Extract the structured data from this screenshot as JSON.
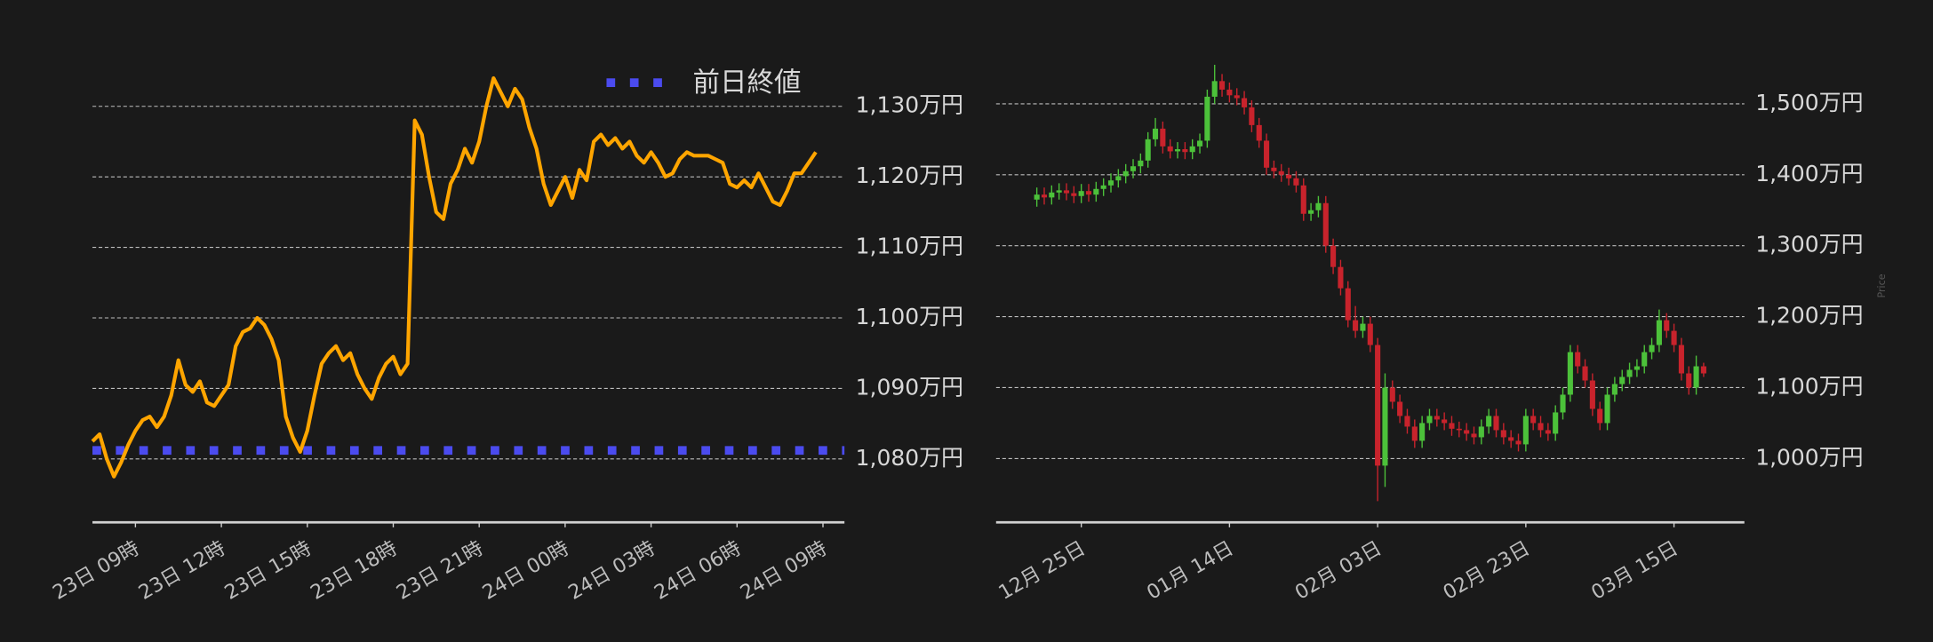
{
  "chart_data": [
    {
      "type": "line",
      "x": [
        7.5,
        7.75,
        8,
        8.25,
        8.5,
        8.75,
        9,
        9.25,
        9.5,
        9.75,
        10,
        10.25,
        10.5,
        10.75,
        11,
        11.25,
        11.5,
        11.75,
        12,
        12.25,
        12.5,
        12.75,
        13,
        13.25,
        13.5,
        13.75,
        14,
        14.25,
        14.5,
        14.75,
        15,
        15.25,
        15.5,
        15.75,
        16,
        16.25,
        16.5,
        16.75,
        17,
        17.25,
        17.5,
        17.75,
        18,
        18.25,
        18.5,
        18.75,
        19,
        19.25,
        19.5,
        19.75,
        20,
        20.25,
        20.5,
        20.75,
        21,
        21.25,
        21.5,
        21.75,
        22,
        22.25,
        22.5,
        22.75,
        23,
        23.25,
        23.5,
        23.75,
        24,
        24.25,
        24.5,
        24.75,
        25,
        25.25,
        25.5,
        25.75,
        26,
        26.25,
        26.5,
        26.75,
        27,
        27.25,
        27.5,
        27.75,
        28,
        28.25,
        28.5,
        28.75,
        29,
        29.25,
        29.5,
        29.75,
        30,
        30.25,
        30.5,
        30.75,
        31,
        31.25,
        31.5,
        31.75,
        32,
        32.25,
        32.5,
        32.75
      ],
      "series": [
        {
          "color": "#ffa500",
          "values": [
            1082.5,
            1083.5,
            1080,
            1077.5,
            1079.5,
            1082,
            1084,
            1085.5,
            1086,
            1084.5,
            1086,
            1089,
            1094,
            1090.5,
            1089.5,
            1091,
            1088,
            1087.5,
            1089,
            1090.5,
            1096,
            1098,
            1098.5,
            1100,
            1099,
            1097,
            1094,
            1086,
            1083,
            1081,
            1084,
            1089,
            1093.5,
            1095,
            1096,
            1094,
            1095,
            1092,
            1090,
            1088.5,
            1091.5,
            1093.5,
            1094.5,
            1092,
            1093.5,
            1128,
            1126,
            1120,
            1115,
            1114,
            1119,
            1121,
            1124,
            1122,
            1125,
            1130,
            1134,
            1132,
            1130,
            1132.5,
            1131,
            1127,
            1124,
            1119,
            1116,
            1118,
            1120,
            1117,
            1121,
            1119.5,
            1125,
            1126,
            1124.5,
            1125.5,
            1124,
            1125,
            1123,
            1122,
            1123.5,
            1122,
            1120,
            1120.5,
            1122.5,
            1123.5,
            1123,
            1123,
            1123,
            1122.5,
            1122,
            1119,
            1118.5,
            1119.5,
            1118.5,
            1120.5,
            1118.5,
            1116.5,
            1116,
            1118,
            1120.5,
            1120.5,
            1122,
            1123.5
          ]
        }
      ],
      "reference": {
        "name": "前日終値",
        "value": 1081.2,
        "color": "#4b4bef"
      },
      "legend": "upper right",
      "xlim": [
        7.5,
        33.75
      ],
      "xticks": [
        {
          "value": 9,
          "label": "23日 09時"
        },
        {
          "value": 12,
          "label": "23日 12時"
        },
        {
          "value": 15,
          "label": "23日 15時"
        },
        {
          "value": 18,
          "label": "23日 18時"
        },
        {
          "value": 21,
          "label": "23日 21時"
        },
        {
          "value": 24,
          "label": "24日 00時"
        },
        {
          "value": 27,
          "label": "24日 03時"
        },
        {
          "value": 30,
          "label": "24日 06時"
        },
        {
          "value": 33,
          "label": "24日 09時"
        }
      ],
      "ylim": [
        1071,
        1137.2
      ],
      "yticks": [
        {
          "value": 1080,
          "label": "1,080万円"
        },
        {
          "value": 1090,
          "label": "1,090万円"
        },
        {
          "value": 1100,
          "label": "1,100万円"
        },
        {
          "value": 1110,
          "label": "1,110万円"
        },
        {
          "value": 1120,
          "label": "1,120万円"
        },
        {
          "value": 1130,
          "label": "1,130万円"
        }
      ],
      "grid": true
    },
    {
      "type": "candlestick",
      "ylabel": "Price",
      "x": [
        "12-19",
        "12-20",
        "12-21",
        "12-22",
        "12-23",
        "12-24",
        "12-25",
        "12-26",
        "12-27",
        "12-28",
        "12-29",
        "12-30",
        "12-31",
        "01-01",
        "01-02",
        "01-03",
        "01-04",
        "01-05",
        "01-06",
        "01-07",
        "01-08",
        "01-09",
        "01-10",
        "01-11",
        "01-12",
        "01-13",
        "01-14",
        "01-15",
        "01-16",
        "01-17",
        "01-18",
        "01-19",
        "01-20",
        "01-21",
        "01-22",
        "01-23",
        "01-24",
        "01-25",
        "01-26",
        "01-27",
        "01-28",
        "01-29",
        "01-30",
        "01-31",
        "02-01",
        "02-02",
        "02-03",
        "02-04",
        "02-05",
        "02-06",
        "02-07",
        "02-08",
        "02-09",
        "02-10",
        "02-11",
        "02-12",
        "02-13",
        "02-14",
        "02-15",
        "02-16",
        "02-17",
        "02-18",
        "02-19",
        "02-20",
        "02-21",
        "02-22",
        "02-23",
        "02-24",
        "02-25",
        "02-26",
        "02-27",
        "02-28",
        "03-01",
        "03-02",
        "03-03",
        "03-04",
        "03-05",
        "03-06",
        "03-07",
        "03-08",
        "03-09",
        "03-10",
        "03-11",
        "03-12",
        "03-13",
        "03-14",
        "03-15",
        "03-16",
        "03-17",
        "03-18",
        "03-19"
      ],
      "open": [
        1365,
        1372,
        1368,
        1375,
        1378,
        1374,
        1370,
        1377,
        1372,
        1380,
        1385,
        1392,
        1398,
        1405,
        1412,
        1420,
        1450,
        1465,
        1440,
        1433,
        1436,
        1432,
        1440,
        1448,
        1510,
        1532,
        1520,
        1512,
        1508,
        1495,
        1470,
        1448,
        1410,
        1405,
        1400,
        1395,
        1385,
        1345,
        1350,
        1360,
        1300,
        1270,
        1240,
        1195,
        1180,
        1190,
        1160,
        990,
        1100,
        1080,
        1060,
        1045,
        1025,
        1050,
        1060,
        1055,
        1050,
        1042,
        1040,
        1035,
        1030,
        1045,
        1060,
        1040,
        1030,
        1025,
        1020,
        1060,
        1050,
        1040,
        1035,
        1065,
        1090,
        1150,
        1130,
        1110,
        1070,
        1050,
        1090,
        1105,
        1115,
        1125,
        1130,
        1150,
        1160,
        1195,
        1180,
        1160,
        1120,
        1100,
        1130
      ],
      "high": [
        1382,
        1382,
        1385,
        1388,
        1388,
        1384,
        1387,
        1387,
        1390,
        1395,
        1402,
        1408,
        1415,
        1422,
        1430,
        1460,
        1480,
        1475,
        1450,
        1446,
        1446,
        1450,
        1458,
        1520,
        1555,
        1542,
        1530,
        1522,
        1518,
        1505,
        1480,
        1458,
        1420,
        1415,
        1410,
        1405,
        1395,
        1360,
        1370,
        1370,
        1310,
        1280,
        1250,
        1215,
        1200,
        1200,
        1170,
        1120,
        1110,
        1090,
        1070,
        1055,
        1060,
        1070,
        1070,
        1065,
        1060,
        1052,
        1050,
        1045,
        1055,
        1070,
        1070,
        1050,
        1040,
        1035,
        1070,
        1070,
        1060,
        1050,
        1075,
        1100,
        1160,
        1160,
        1140,
        1120,
        1080,
        1100,
        1115,
        1125,
        1135,
        1140,
        1160,
        1170,
        1210,
        1205,
        1190,
        1170,
        1130,
        1145,
        1135
      ],
      "low": [
        1355,
        1358,
        1358,
        1365,
        1364,
        1360,
        1360,
        1362,
        1362,
        1370,
        1375,
        1382,
        1388,
        1395,
        1402,
        1410,
        1440,
        1430,
        1423,
        1423,
        1422,
        1422,
        1430,
        1438,
        1500,
        1510,
        1502,
        1498,
        1485,
        1460,
        1438,
        1400,
        1395,
        1390,
        1385,
        1375,
        1335,
        1335,
        1340,
        1290,
        1260,
        1230,
        1185,
        1170,
        1170,
        1150,
        940,
        960,
        1070,
        1050,
        1035,
        1015,
        1015,
        1040,
        1045,
        1040,
        1032,
        1030,
        1025,
        1020,
        1020,
        1035,
        1030,
        1020,
        1015,
        1010,
        1010,
        1040,
        1030,
        1025,
        1025,
        1055,
        1080,
        1120,
        1100,
        1060,
        1040,
        1040,
        1080,
        1095,
        1105,
        1115,
        1120,
        1140,
        1150,
        1170,
        1150,
        1110,
        1090,
        1090,
        1115
      ],
      "close": [
        1372,
        1368,
        1375,
        1378,
        1374,
        1370,
        1377,
        1372,
        1380,
        1385,
        1392,
        1398,
        1405,
        1412,
        1420,
        1450,
        1465,
        1440,
        1433,
        1436,
        1432,
        1440,
        1448,
        1510,
        1532,
        1520,
        1512,
        1508,
        1495,
        1470,
        1448,
        1410,
        1405,
        1400,
        1395,
        1385,
        1345,
        1350,
        1360,
        1300,
        1270,
        1240,
        1195,
        1180,
        1190,
        1160,
        990,
        1100,
        1080,
        1060,
        1045,
        1025,
        1050,
        1060,
        1055,
        1050,
        1042,
        1040,
        1035,
        1030,
        1045,
        1060,
        1040,
        1030,
        1025,
        1020,
        1060,
        1050,
        1040,
        1035,
        1065,
        1090,
        1150,
        1130,
        1110,
        1070,
        1050,
        1090,
        1105,
        1115,
        1125,
        1130,
        1150,
        1160,
        1195,
        1180,
        1160,
        1120,
        1100,
        1130,
        1120
      ],
      "up_color": "#4cc13a",
      "down_color": "#c8232c",
      "xticks": [
        {
          "value": "12-25",
          "label": "12月 25日"
        },
        {
          "value": "01-14",
          "label": "01月 14日"
        },
        {
          "value": "02-03",
          "label": "02月 03日"
        },
        {
          "value": "02-23",
          "label": "02月 23日"
        },
        {
          "value": "03-15",
          "label": "03月 15日"
        }
      ],
      "ylim": [
        910,
        1568
      ],
      "yticks": [
        {
          "value": 1000,
          "label": "1,000万円"
        },
        {
          "value": 1100,
          "label": "1,100万円"
        },
        {
          "value": 1200,
          "label": "1,200万円"
        },
        {
          "value": 1300,
          "label": "1,300万円"
        },
        {
          "value": 1400,
          "label": "1,400万円"
        },
        {
          "value": 1500,
          "label": "1,500万円"
        }
      ],
      "grid": true
    }
  ]
}
